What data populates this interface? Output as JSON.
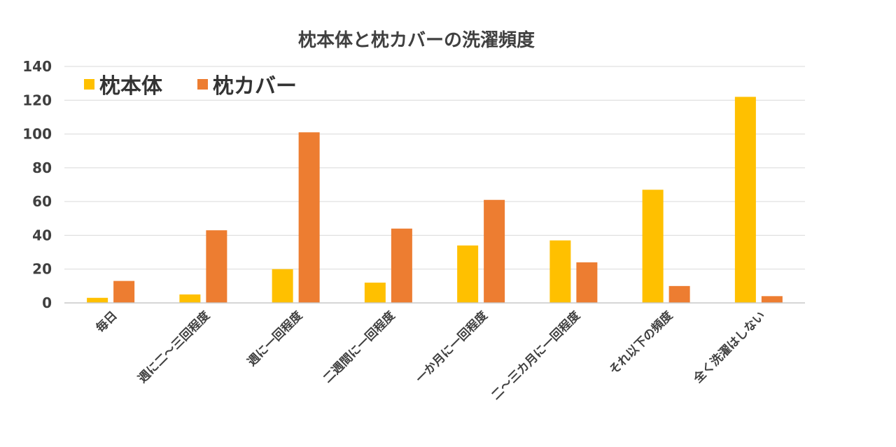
{
  "chart_data": {
    "type": "bar",
    "title": "枕本体と枕カバーの洗濯頻度",
    "xlabel": "",
    "ylabel": "",
    "categories": [
      "毎日",
      "週に二～三回程度",
      "週に一回程度",
      "二週間に一回程度",
      "一か月に一回程度",
      "二～三カ月に一回程度",
      "それ以下の頻度",
      "全く洗濯はしない"
    ],
    "series": [
      {
        "name": "枕本体",
        "color": "#FFC000",
        "values": [
          3,
          5,
          20,
          12,
          34,
          37,
          67,
          122
        ]
      },
      {
        "name": "枕カバー",
        "color": "#ED7D31",
        "values": [
          13,
          43,
          101,
          44,
          61,
          24,
          10,
          4
        ]
      }
    ],
    "ylim": [
      0,
      140
    ],
    "yticks": [
      0,
      20,
      40,
      60,
      80,
      100,
      120,
      140
    ],
    "grid": true,
    "legend_position": "top-left"
  }
}
